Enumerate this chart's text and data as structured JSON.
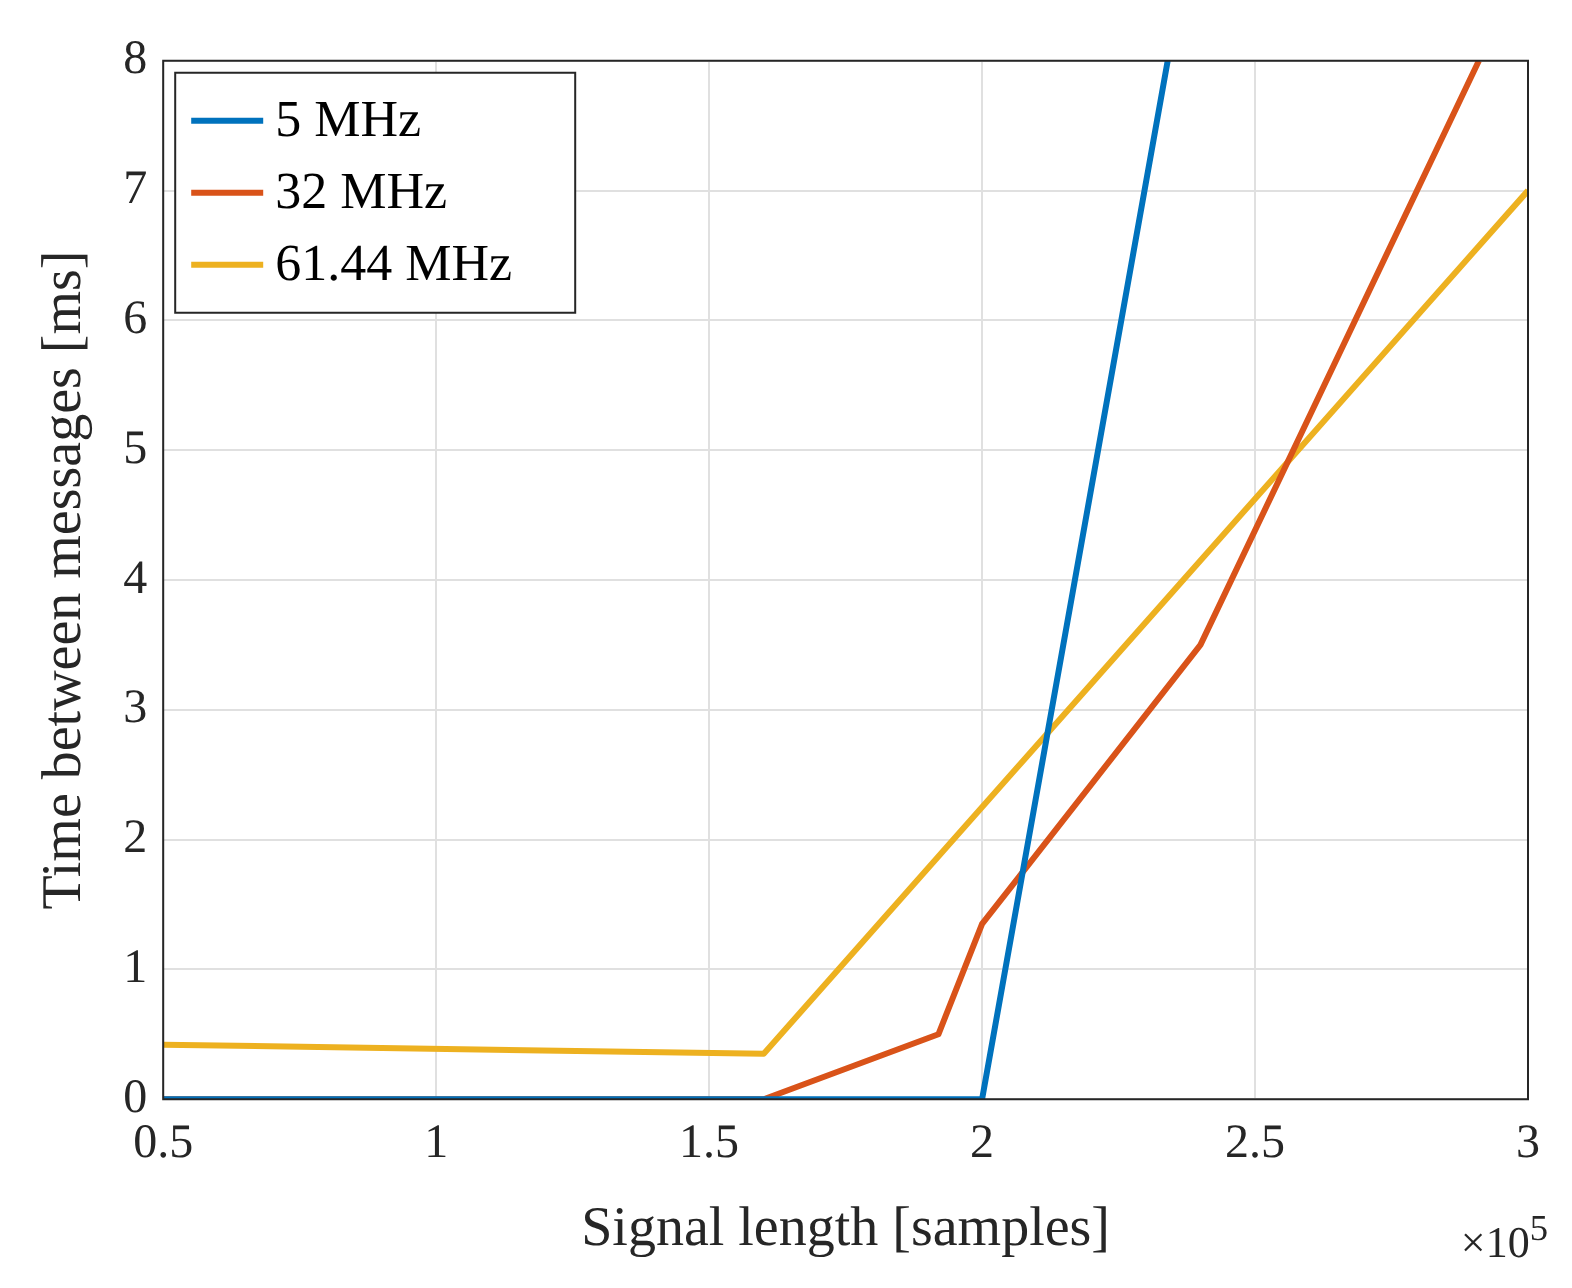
{
  "chart_data": {
    "type": "line",
    "xlabel": "Signal length [samples]",
    "ylabel": "Time between messages [ms]",
    "annotations": [
      "×10$^{5}$"
    ],
    "xlim": [
      0.5,
      3
    ],
    "xticks": [
      0.5,
      1,
      1.5,
      2,
      2.5,
      3
    ],
    "ylim": [
      0,
      8
    ],
    "yticks": [
      0,
      1,
      2,
      3,
      4,
      5,
      6,
      7,
      8
    ],
    "grid": true,
    "legend": "top left",
    "marker": "none",
    "line_style": "solid",
    "series": [
      {
        "name": "5 MHz",
        "color": "#0072bd",
        "x": [
          0.5,
          2.0,
          2.34
        ],
        "values": [
          0,
          0,
          8
        ]
      },
      {
        "name": "32 MHz",
        "color": "#d95319",
        "x": [
          0.5,
          1.6,
          1.92,
          2.0,
          2.4,
          2.91
        ],
        "values": [
          0,
          0,
          0.5,
          1.35,
          3.5,
          8
        ]
      },
      {
        "name": "61.44 MHz",
        "color": "#edb120",
        "x": [
          0.5,
          1.6,
          3.0
        ],
        "values": [
          0.42,
          0.35,
          7
        ]
      }
    ]
  }
}
